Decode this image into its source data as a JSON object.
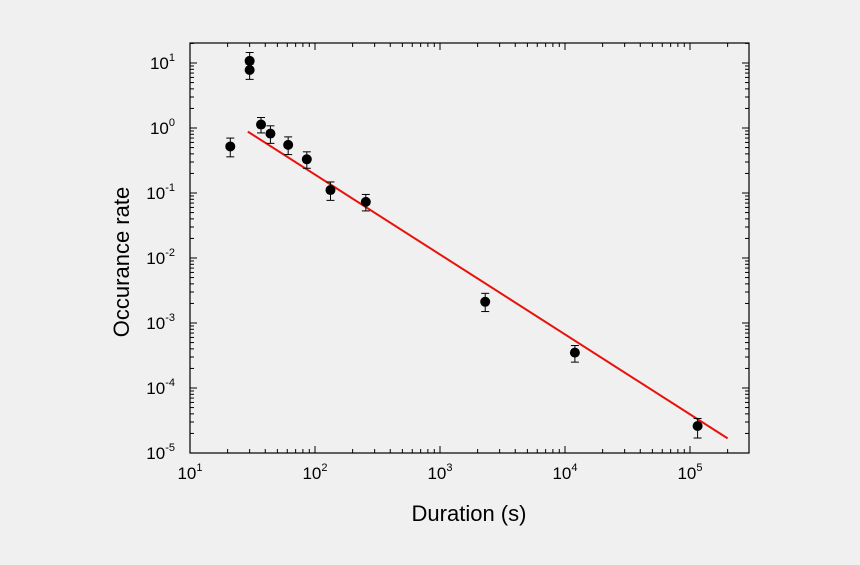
{
  "chart_data": {
    "type": "scatter",
    "title": "",
    "xlabel": "Duration (s)",
    "ylabel": "Occurance rate",
    "x_scale": "log",
    "y_scale": "log",
    "xlim": [
      10,
      300000
    ],
    "ylim": [
      1e-05,
      20
    ],
    "x_ticks": [
      {
        "value": 10,
        "base": "10",
        "exp": "1"
      },
      {
        "value": 100,
        "base": "10",
        "exp": "2"
      },
      {
        "value": 1000,
        "base": "10",
        "exp": "3"
      },
      {
        "value": 10000,
        "base": "10",
        "exp": "4"
      },
      {
        "value": 100000,
        "base": "10",
        "exp": "5"
      }
    ],
    "y_ticks": [
      {
        "value": 1e-05,
        "base": "10",
        "exp": "-5"
      },
      {
        "value": 0.0001,
        "base": "10",
        "exp": "-4"
      },
      {
        "value": 0.001,
        "base": "10",
        "exp": "-3"
      },
      {
        "value": 0.01,
        "base": "10",
        "exp": "-2"
      },
      {
        "value": 0.1,
        "base": "10",
        "exp": "-1"
      },
      {
        "value": 1,
        "base": "10",
        "exp": "0"
      },
      {
        "value": 10,
        "base": "10",
        "exp": "1"
      }
    ],
    "grid": false,
    "points": [
      {
        "x": 21,
        "y": 0.52,
        "err_low": 0.36,
        "err_high": 0.7
      },
      {
        "x": 30,
        "y": 10.8,
        "err_low": 8.5,
        "err_high": 14.5
      },
      {
        "x": 30,
        "y": 7.8,
        "err_low": 5.6,
        "err_high": 9.6
      },
      {
        "x": 37,
        "y": 1.13,
        "err_low": 0.84,
        "err_high": 1.45
      },
      {
        "x": 44,
        "y": 0.82,
        "err_low": 0.58,
        "err_high": 1.08
      },
      {
        "x": 61,
        "y": 0.55,
        "err_low": 0.39,
        "err_high": 0.73
      },
      {
        "x": 86,
        "y": 0.33,
        "err_low": 0.24,
        "err_high": 0.43
      },
      {
        "x": 133,
        "y": 0.111,
        "err_low": 0.077,
        "err_high": 0.148
      },
      {
        "x": 255,
        "y": 0.073,
        "err_low": 0.053,
        "err_high": 0.095
      },
      {
        "x": 2300,
        "y": 0.00212,
        "err_low": 0.0015,
        "err_high": 0.00286
      },
      {
        "x": 12000,
        "y": 0.00035,
        "err_low": 0.00025,
        "err_high": 0.00045
      },
      {
        "x": 115000,
        "y": 2.6e-05,
        "err_low": 1.7e-05,
        "err_high": 3.4e-05
      }
    ],
    "fit_line": {
      "color": "#e8120c",
      "x": [
        29,
        200000
      ],
      "y": [
        0.88,
        1.68e-05
      ]
    },
    "colors": {
      "points": "#000000",
      "fit": "#e8120c"
    }
  }
}
